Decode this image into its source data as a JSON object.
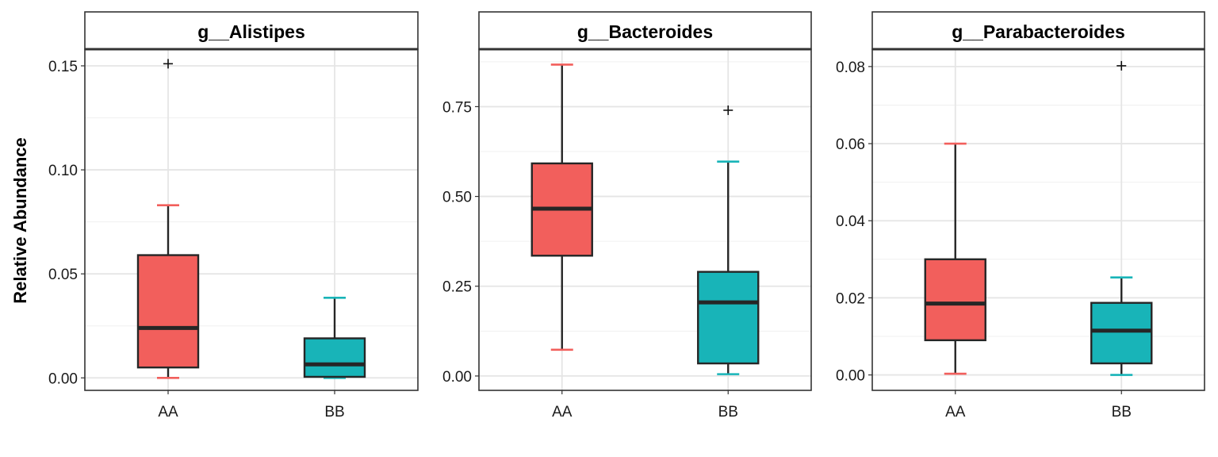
{
  "figure": {
    "ylabel": "Relative Abundance",
    "colors": {
      "AA": "#F25F5C",
      "BB": "#18B4B8",
      "median": "#262626",
      "panel_border": "#333333",
      "grid_major": "#E5E5E5",
      "grid_minor": "#F0F0F0"
    }
  },
  "chart_data": [
    {
      "type": "box",
      "title": "g__Alistipes",
      "categories": [
        "AA",
        "BB"
      ],
      "ylim": [
        -0.006,
        0.158
      ],
      "yticks": [
        0.0,
        0.05,
        0.1,
        0.15
      ],
      "ytick_labels": [
        "0.00",
        "0.05",
        "0.10",
        "0.15"
      ],
      "grid": true,
      "boxes": [
        {
          "group": "AA",
          "whisker_low": 0.0,
          "q1": 0.005,
          "median": 0.024,
          "q3": 0.059,
          "whisker_high": 0.083,
          "outliers": [
            0.151
          ]
        },
        {
          "group": "BB",
          "whisker_low": 0.0,
          "q1": 0.0005,
          "median": 0.0065,
          "q3": 0.019,
          "whisker_high": 0.0385,
          "outliers": []
        }
      ]
    },
    {
      "type": "box",
      "title": "g__Bacteroides",
      "categories": [
        "AA",
        "BB"
      ],
      "ylim": [
        -0.04,
        0.91
      ],
      "yticks": [
        0.0,
        0.25,
        0.5,
        0.75
      ],
      "ytick_labels": [
        "0.00",
        "0.25",
        "0.50",
        "0.75"
      ],
      "grid": true,
      "boxes": [
        {
          "group": "AA",
          "whisker_low": 0.073,
          "q1": 0.335,
          "median": 0.466,
          "q3": 0.592,
          "whisker_high": 0.867,
          "outliers": []
        },
        {
          "group": "BB",
          "whisker_low": 0.005,
          "q1": 0.035,
          "median": 0.205,
          "q3": 0.29,
          "whisker_high": 0.597,
          "outliers": [
            0.74
          ]
        }
      ]
    },
    {
      "type": "box",
      "title": "g__Parabacteroides",
      "categories": [
        "AA",
        "BB"
      ],
      "ylim": [
        -0.004,
        0.0845
      ],
      "yticks": [
        0.0,
        0.02,
        0.04,
        0.06,
        0.08
      ],
      "ytick_labels": [
        "0.00",
        "0.02",
        "0.04",
        "0.06",
        "0.08"
      ],
      "grid": true,
      "boxes": [
        {
          "group": "AA",
          "whisker_low": 0.0003,
          "q1": 0.009,
          "median": 0.0185,
          "q3": 0.03,
          "whisker_high": 0.06,
          "outliers": []
        },
        {
          "group": "BB",
          "whisker_low": 0.0,
          "q1": 0.003,
          "median": 0.0115,
          "q3": 0.0187,
          "whisker_high": 0.0253,
          "outliers": [
            0.0802
          ]
        }
      ]
    }
  ]
}
